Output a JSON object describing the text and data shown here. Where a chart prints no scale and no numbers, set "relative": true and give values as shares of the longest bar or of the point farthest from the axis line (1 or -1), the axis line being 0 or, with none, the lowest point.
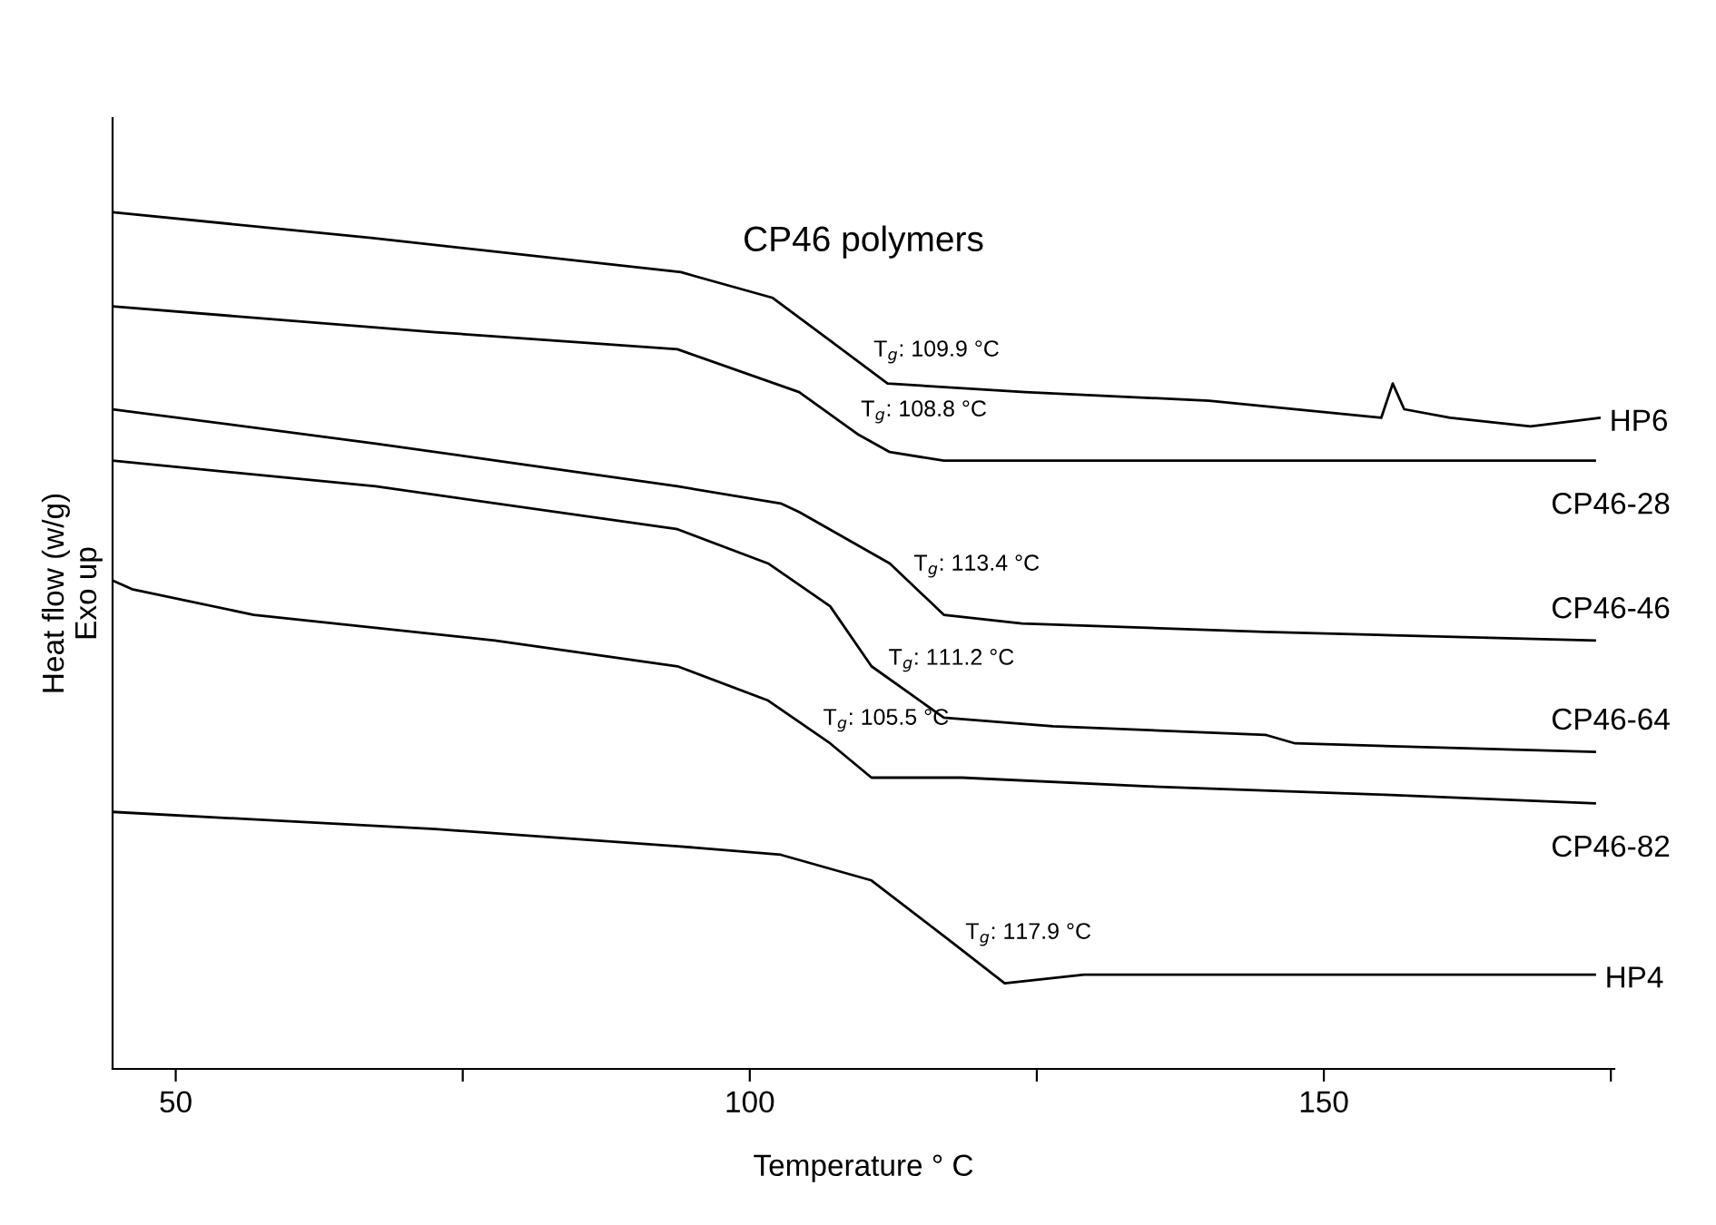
{
  "chart_data": {
    "type": "line",
    "title": "CP46 polymers",
    "xlabel": "Temperature ° C",
    "ylabel": "Heat flow (w/g)\nExo up",
    "relative": true,
    "xlim": [
      44.5,
      175.3
    ],
    "xticks": [
      50,
      {
        "value": 75,
        "label": null
      },
      100,
      {
        "value": 125,
        "label": null
      },
      150,
      {
        "value": 175,
        "label": null
      }
    ],
    "tick_labels": "x",
    "grid": false,
    "legend": false,
    "series": [
      {
        "name": "HP6",
        "color": "#000000",
        "x": [
          44.5,
          67,
          94,
          102,
          107,
          112,
          124,
          140,
          155,
          156,
          157,
          161,
          168,
          174
        ],
        "values": [
          1.0,
          0.97,
          0.93,
          0.9,
          0.85,
          0.8,
          0.79,
          0.78,
          0.76,
          0.8,
          0.77,
          0.76,
          0.75,
          0.76
        ]
      },
      {
        "name": "CP46-28",
        "color": "#000000",
        "x": [
          44.5,
          72.6,
          93.7,
          104.3,
          109.5,
          112.2,
          116.9,
          134.3,
          155.4,
          173.6
        ],
        "values": [
          0.89,
          0.86,
          0.84,
          0.79,
          0.74,
          0.72,
          0.71,
          0.71,
          0.71,
          0.71
        ]
      },
      {
        "name": "CP46-46",
        "color": "#000000",
        "x": [
          44.5,
          67.4,
          93.7,
          102.7,
          104.3,
          112.2,
          116.9,
          123.7,
          144.9,
          173.6
        ],
        "values": [
          0.77,
          0.73,
          0.68,
          0.66,
          0.65,
          0.59,
          0.53,
          0.52,
          0.51,
          0.5
        ]
      },
      {
        "name": "CP46-64",
        "color": "#000000",
        "x": [
          44.5,
          67.4,
          93.7,
          101.6,
          107,
          110.6,
          116.9,
          126.4,
          144.9,
          147.5,
          173.6
        ],
        "values": [
          0.71,
          0.68,
          0.63,
          0.59,
          0.54,
          0.47,
          0.41,
          0.4,
          0.39,
          0.38,
          0.37
        ]
      },
      {
        "name": "CP46-82",
        "color": "#000000",
        "x": [
          44.5,
          46.2,
          56.8,
          77.8,
          93.7,
          101.6,
          107,
          110.6,
          118.5,
          134.3,
          155.4,
          173.6
        ],
        "values": [
          0.57,
          0.56,
          0.53,
          0.5,
          0.47,
          0.43,
          0.38,
          0.34,
          0.34,
          0.33,
          0.32,
          0.31
        ]
      },
      {
        "name": "HP4",
        "color": "#000000",
        "x": [
          44.5,
          72.6,
          93.7,
          102.7,
          110.6,
          117.4,
          122.2,
          129.1,
          155.4,
          173.6
        ],
        "values": [
          0.3,
          0.28,
          0.26,
          0.25,
          0.22,
          0.15,
          0.1,
          0.11,
          0.11,
          0.11
        ]
      }
    ],
    "annotations": [
      {
        "text": "T$_{g}$: 109.9 °C",
        "x": 109.9,
        "y": 0.82
      },
      {
        "text": "T$_{g}$: 108.8 °C",
        "x": 108.8,
        "y": 0.75
      },
      {
        "text": "T$_{g}$: 113.4 °C",
        "x": 113.4,
        "y": 0.57
      },
      {
        "text": "T$_{g}$: 111.2 °C",
        "x": 111.2,
        "y": 0.46
      },
      {
        "text": "T$_{g}$: 105.5 °C",
        "x": 105.5,
        "y": 0.39
      },
      {
        "text": "T$_{g}$: 117.9 °C",
        "x": 117.9,
        "y": 0.14
      }
    ]
  }
}
